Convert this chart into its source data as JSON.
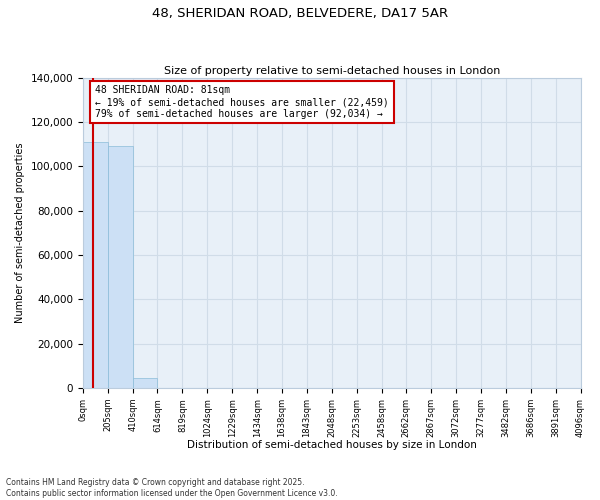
{
  "title": "48, SHERIDAN ROAD, BELVEDERE, DA17 5AR",
  "subtitle": "Size of property relative to semi-detached houses in London",
  "xlabel": "Distribution of semi-detached houses by size in London",
  "ylabel": "Number of semi-detached properties",
  "property_size": 81,
  "property_label": "48 SHERIDAN ROAD: 81sqm",
  "pct_smaller": 19,
  "pct_larger": 79,
  "count_smaller": 22459,
  "count_larger": 92034,
  "bar_color": "#cce0f5",
  "bar_edge_color": "#8bbcd8",
  "line_color": "#cc0000",
  "annotation_box_color": "#cc0000",
  "grid_color": "#d0dce8",
  "background_color": "#e8f0f8",
  "footer": "Contains HM Land Registry data © Crown copyright and database right 2025.\nContains public sector information licensed under the Open Government Licence v3.0.",
  "bin_edges": [
    0,
    205,
    410,
    614,
    819,
    1024,
    1229,
    1434,
    1638,
    1843,
    2048,
    2253,
    2458,
    2662,
    2867,
    3072,
    3277,
    3482,
    3686,
    3891,
    4096
  ],
  "bin_labels": [
    "0sqm",
    "205sqm",
    "410sqm",
    "614sqm",
    "819sqm",
    "1024sqm",
    "1229sqm",
    "1434sqm",
    "1638sqm",
    "1843sqm",
    "2048sqm",
    "2253sqm",
    "2458sqm",
    "2662sqm",
    "2867sqm",
    "3072sqm",
    "3277sqm",
    "3482sqm",
    "3686sqm",
    "3891sqm",
    "4096sqm"
  ],
  "bar_heights": [
    111000,
    109000,
    4500,
    150,
    40,
    15,
    8,
    5,
    3,
    2,
    2,
    1,
    1,
    1,
    1,
    0,
    0,
    0,
    0,
    0
  ],
  "ylim": [
    0,
    140000
  ],
  "yticks": [
    0,
    20000,
    40000,
    60000,
    80000,
    100000,
    120000,
    140000
  ]
}
